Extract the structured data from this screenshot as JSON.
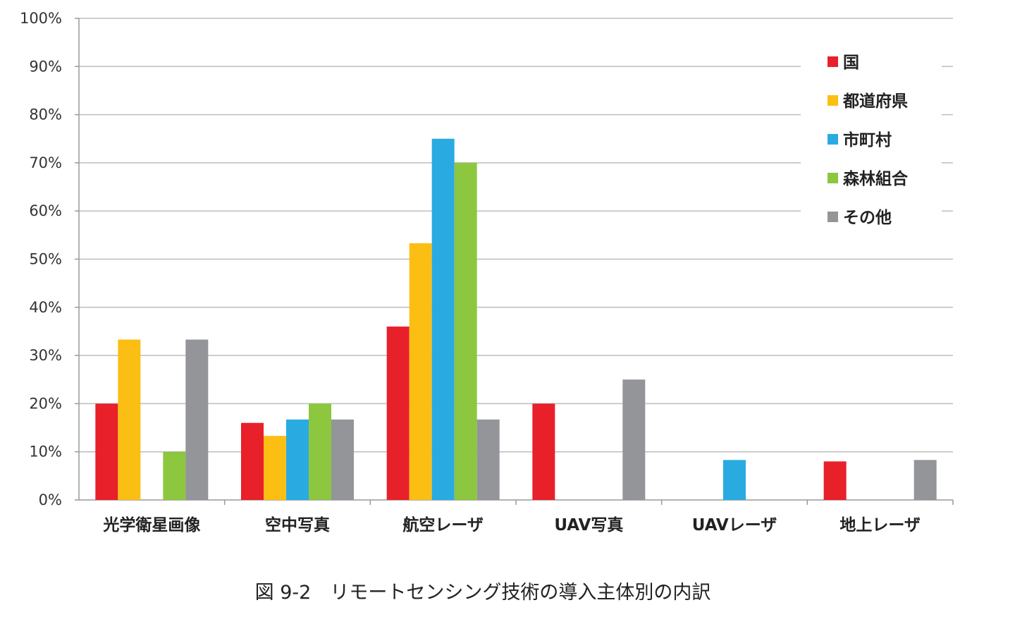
{
  "caption": "図 9-2　リモートセンシング技術の導入主体別の内訳",
  "chart_data": {
    "type": "bar",
    "title": "",
    "xlabel": "",
    "ylabel": "",
    "ylim": [
      0,
      100
    ],
    "y_ticks": [
      "0%",
      "10%",
      "20%",
      "30%",
      "40%",
      "50%",
      "60%",
      "70%",
      "80%",
      "90%",
      "100%"
    ],
    "grid": true,
    "legend_position": "top-right",
    "categories": [
      "光学衛星画像",
      "空中写真",
      "航空レーザ",
      "UAV写真",
      "UAVレーザ",
      "地上レーザ"
    ],
    "series": [
      {
        "name": "国",
        "color": "#e8202a",
        "values": [
          20,
          16,
          36,
          20,
          0,
          8
        ]
      },
      {
        "name": "都道府県",
        "color": "#fbbf14",
        "values": [
          33.3,
          13.3,
          53.3,
          0,
          0,
          0
        ]
      },
      {
        "name": "市町村",
        "color": "#29abe2",
        "values": [
          0,
          16.7,
          75,
          0,
          8.3,
          0
        ]
      },
      {
        "name": "森林組合",
        "color": "#8dc63f",
        "values": [
          10,
          20,
          70,
          0,
          0,
          0
        ]
      },
      {
        "name": "その他",
        "color": "#939598",
        "values": [
          33.3,
          16.7,
          16.7,
          25,
          0,
          8.3
        ]
      }
    ]
  }
}
